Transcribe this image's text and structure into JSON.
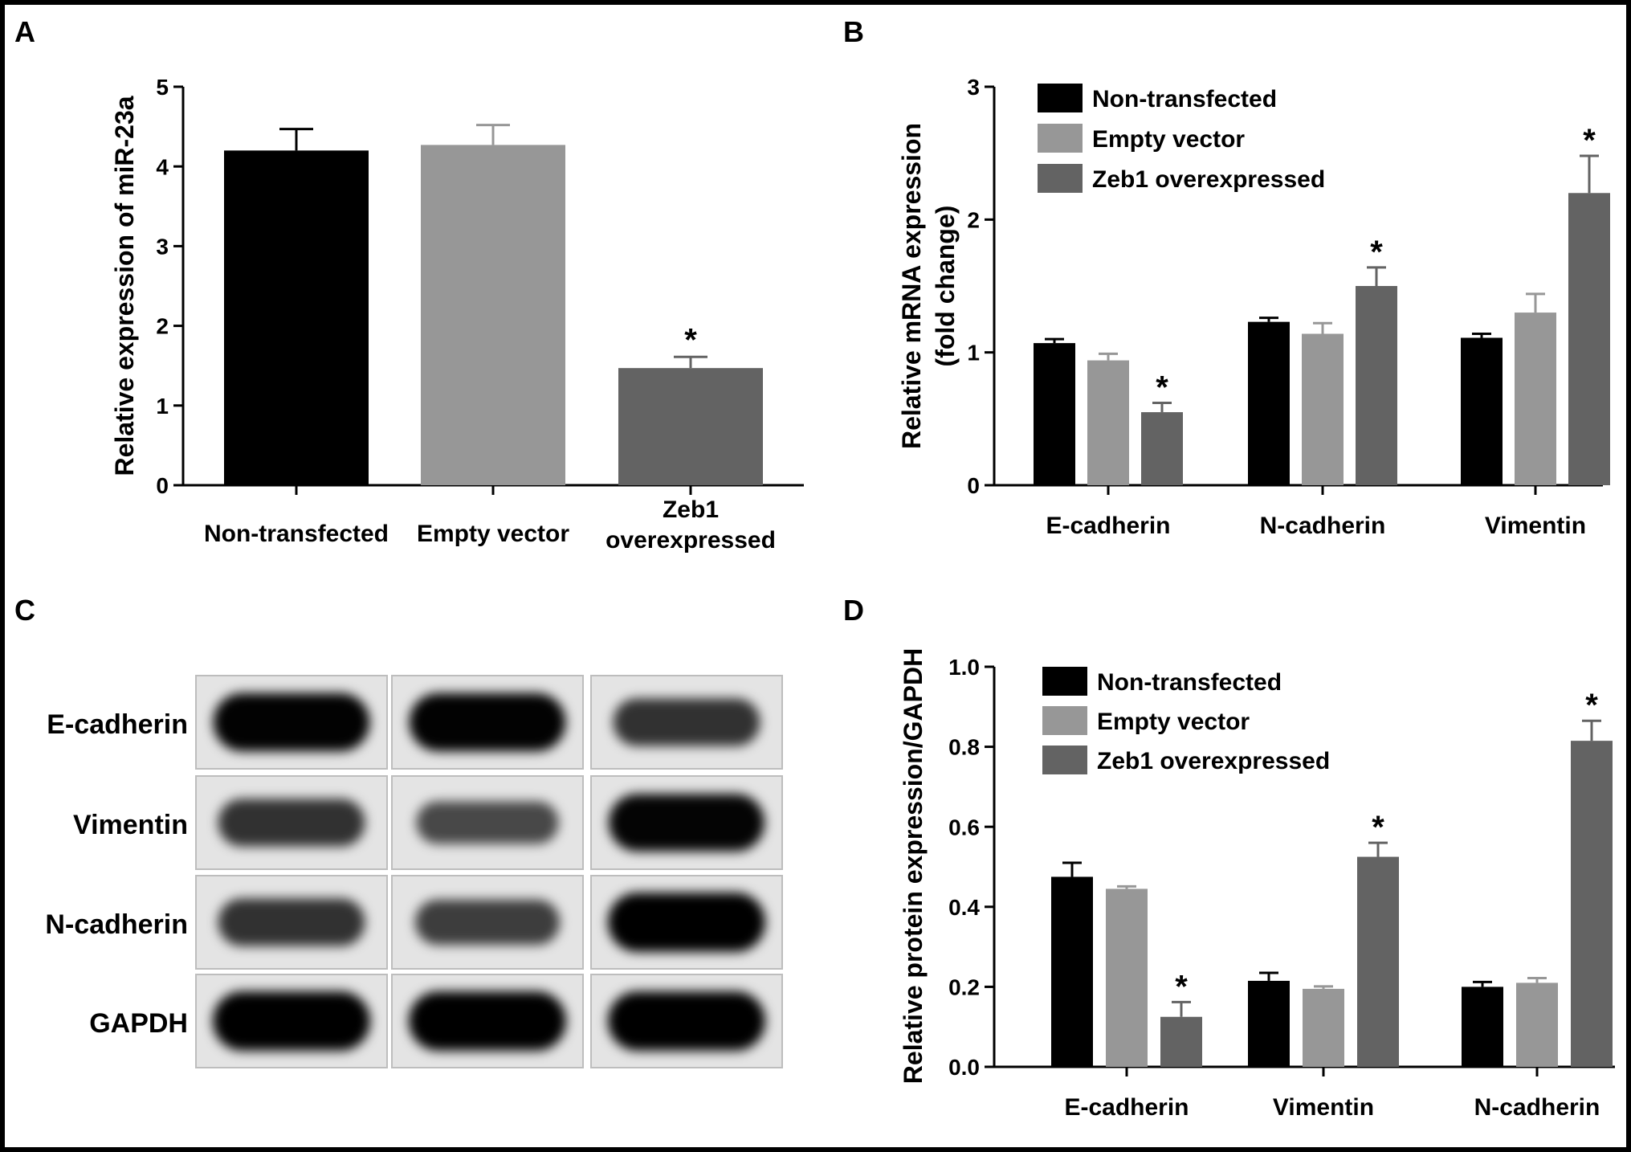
{
  "colors": {
    "non_transfected": "#000000",
    "empty_vector": "#979797",
    "zeb1_overexpressed": "#636363",
    "axis": "#000000"
  },
  "blot": {
    "panel_label": "C",
    "rows": [
      {
        "label": "E-cadherin",
        "bands": [
          0.92,
          0.92,
          0.62
        ]
      },
      {
        "label": "Vimentin",
        "bands": [
          0.62,
          0.48,
          0.9
        ]
      },
      {
        "label": "N-cadherin",
        "bands": [
          0.62,
          0.55,
          0.95
        ]
      },
      {
        "label": "GAPDH",
        "bands": [
          0.95,
          0.95,
          0.95
        ]
      }
    ]
  },
  "chart_data": [
    {
      "panel_label": "A",
      "type": "bar",
      "categories": [
        "Non-transfected",
        "Empty vector",
        "Zeb1 overexpressed"
      ],
      "category_lines": [
        [
          "Non-transfected"
        ],
        [
          "Empty vector"
        ],
        [
          "Zeb1",
          "overexpressed"
        ]
      ],
      "values": [
        4.2,
        4.27,
        1.47
      ],
      "errors": [
        0.27,
        0.25,
        0.14
      ],
      "significance": [
        "",
        "",
        "*"
      ],
      "colors": [
        "#000000",
        "#979797",
        "#636363"
      ],
      "ylabel": "Relative expression of miR-23a",
      "ylim": [
        0,
        5
      ],
      "yticks": [
        "0",
        "1",
        "2",
        "3",
        "4",
        "5"
      ]
    },
    {
      "panel_label": "B",
      "type": "bar",
      "categories": [
        "E-cadherin",
        "N-cadherin",
        "Vimentin"
      ],
      "series": [
        {
          "name": "Non-transfected",
          "values": [
            1.07,
            1.23,
            1.11
          ],
          "errors": [
            0.03,
            0.03,
            0.03
          ],
          "significance": [
            "",
            "",
            ""
          ]
        },
        {
          "name": "Empty vector",
          "values": [
            0.94,
            1.14,
            1.3
          ],
          "errors": [
            0.05,
            0.08,
            0.14
          ],
          "significance": [
            "",
            "",
            ""
          ]
        },
        {
          "name": "Zeb1 overexpressed",
          "values": [
            0.55,
            1.5,
            2.2
          ],
          "errors": [
            0.07,
            0.14,
            0.28
          ],
          "significance": [
            "*",
            "*",
            "*"
          ]
        }
      ],
      "ylabel_lines": [
        "Relative  mRNA expression",
        "(fold change)"
      ],
      "ylim": [
        0,
        3
      ],
      "yticks": [
        "0",
        "1",
        "2",
        "3"
      ],
      "legend": "top-left"
    },
    {
      "panel_label": "D",
      "type": "bar",
      "categories": [
        "E-cadherin",
        "Vimentin",
        "N-cadherin"
      ],
      "series": [
        {
          "name": "Non-transfected",
          "values": [
            0.475,
            0.215,
            0.2
          ],
          "errors": [
            0.035,
            0.02,
            0.012
          ],
          "significance": [
            "",
            "",
            ""
          ]
        },
        {
          "name": "Empty vector",
          "values": [
            0.445,
            0.195,
            0.21
          ],
          "errors": [
            0.006,
            0.006,
            0.012
          ],
          "significance": [
            "",
            "",
            ""
          ]
        },
        {
          "name": "Zeb1 overexpressed",
          "values": [
            0.125,
            0.525,
            0.815
          ],
          "errors": [
            0.037,
            0.035,
            0.05
          ],
          "significance": [
            "*",
            "*",
            "*"
          ]
        }
      ],
      "ylabel": "Relative protein expression/GAPDH",
      "ylim": [
        0,
        1.0
      ],
      "yticks": [
        "0.0",
        "0.2",
        "0.4",
        "0.6",
        "0.8",
        "1.0"
      ],
      "legend": "top-left"
    }
  ]
}
